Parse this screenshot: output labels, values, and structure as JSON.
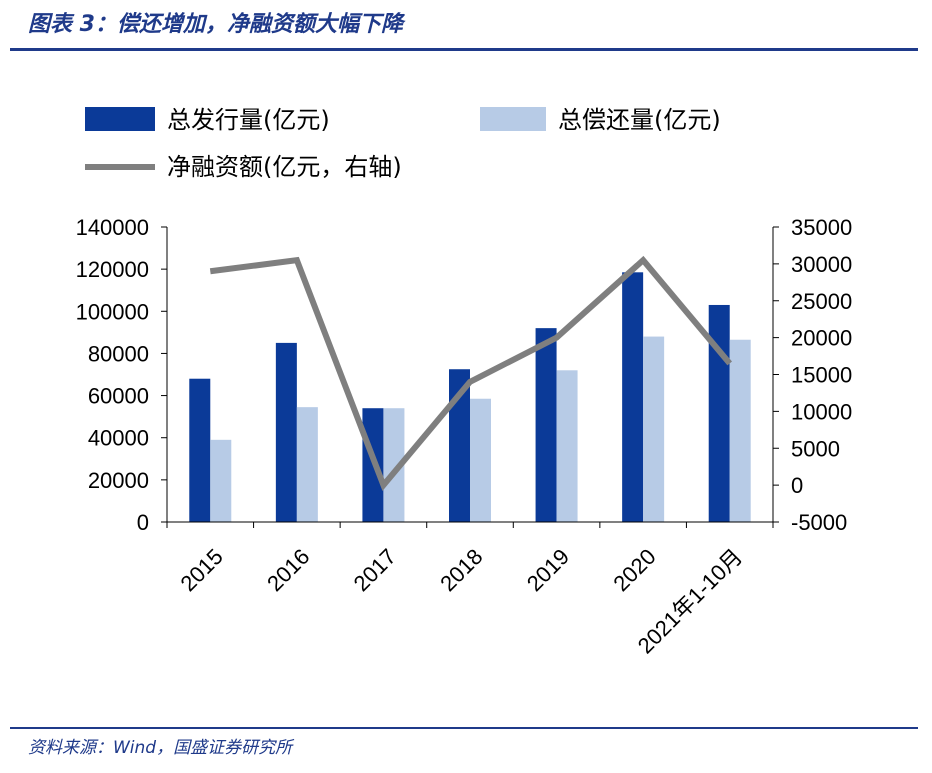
{
  "figure": {
    "title": "图表 3：偿还增加，净融资额大幅下降",
    "source": "资料来源：Wind，国盛证券研究所"
  },
  "chart_data": {
    "type": "bar",
    "categories": [
      "2015",
      "2016",
      "2017",
      "2018",
      "2019",
      "2020",
      "2021年1-10月"
    ],
    "series": [
      {
        "name": "总发行量(亿元)",
        "type": "bar",
        "axis": "left",
        "color": "#0b3a98",
        "values": [
          68000,
          85000,
          54000,
          72500,
          92000,
          118500,
          103000
        ]
      },
      {
        "name": "总偿还量(亿元)",
        "type": "bar",
        "axis": "left",
        "color": "#b7cbe6",
        "values": [
          39000,
          54500,
          54000,
          58500,
          72000,
          88000,
          86500
        ]
      },
      {
        "name": "净融资额(亿元，右轴)",
        "type": "line",
        "axis": "right",
        "color": "#7f7f7f",
        "values": [
          29000,
          30500,
          0,
          14000,
          20000,
          30500,
          16500
        ]
      }
    ],
    "y_left": {
      "min": 0,
      "max": 140000,
      "ticks": [
        "0",
        "20000",
        "40000",
        "60000",
        "80000",
        "100000",
        "120000",
        "140000"
      ]
    },
    "y_right": {
      "min": -5000,
      "max": 35000,
      "ticks": [
        "-5000",
        "0",
        "5000",
        "10000",
        "15000",
        "20000",
        "25000",
        "30000",
        "35000"
      ]
    },
    "legend": {
      "placement": "top"
    },
    "grid": false
  }
}
